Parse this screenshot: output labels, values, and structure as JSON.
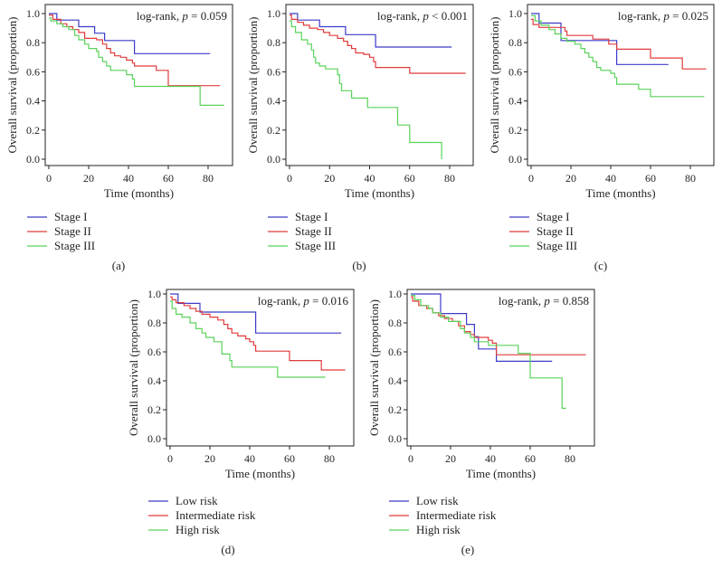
{
  "figure": {
    "colors": {
      "blue": "#3c3cc8",
      "red": "#e03c3c",
      "green": "#5ad25a",
      "axis": "#231f20"
    }
  },
  "chart_data": [
    {
      "type": "line",
      "panel_label": "(a)",
      "title": "",
      "xlabel": "Time (months)",
      "ylabel": "Overall survival (proportion)",
      "annotation_prefix": "log-rank, ",
      "annotation_p": "p",
      "annotation_value": " = 0.059",
      "xlim": [
        0,
        90
      ],
      "ylim": [
        0,
        1.0
      ],
      "xticks": [
        "0",
        "20",
        "40",
        "60",
        "80"
      ],
      "yticks": [
        "0.0",
        "0.2",
        "0.4",
        "0.6",
        "0.8",
        "1.0"
      ],
      "legend": "below",
      "series": [
        {
          "name": "Stage I",
          "color": "#3c3cc8",
          "steps": [
            [
              0,
              1.0
            ],
            [
              4,
              0.955
            ],
            [
              15,
              0.91
            ],
            [
              23,
              0.865
            ],
            [
              28,
              0.815
            ],
            [
              43,
              0.725
            ],
            [
              81,
              0.725
            ]
          ]
        },
        {
          "name": "Stage II",
          "color": "#e03c3c",
          "steps": [
            [
              0,
              0.99
            ],
            [
              2,
              0.96
            ],
            [
              6,
              0.93
            ],
            [
              9,
              0.91
            ],
            [
              12,
              0.89
            ],
            [
              15,
              0.87
            ],
            [
              18,
              0.83
            ],
            [
              24,
              0.82
            ],
            [
              27,
              0.79
            ],
            [
              29,
              0.76
            ],
            [
              31,
              0.73
            ],
            [
              33,
              0.71
            ],
            [
              36,
              0.7
            ],
            [
              39,
              0.68
            ],
            [
              42,
              0.66
            ],
            [
              43,
              0.64
            ],
            [
              54,
              0.61
            ],
            [
              60,
              0.505
            ],
            [
              86,
              0.505
            ]
          ]
        },
        {
          "name": "Stage III",
          "color": "#5ad25a",
          "steps": [
            [
              0,
              0.97
            ],
            [
              1,
              0.95
            ],
            [
              4,
              0.93
            ],
            [
              7,
              0.91
            ],
            [
              10,
              0.89
            ],
            [
              13,
              0.85
            ],
            [
              15,
              0.82
            ],
            [
              18,
              0.79
            ],
            [
              20,
              0.76
            ],
            [
              24,
              0.74
            ],
            [
              25,
              0.7
            ],
            [
              27,
              0.67
            ],
            [
              29,
              0.64
            ],
            [
              31,
              0.61
            ],
            [
              39,
              0.58
            ],
            [
              42,
              0.55
            ],
            [
              43,
              0.5
            ],
            [
              76,
              0.37
            ],
            [
              88,
              0.37
            ]
          ]
        }
      ]
    },
    {
      "type": "line",
      "panel_label": "(b)",
      "title": "",
      "xlabel": "Time (months)",
      "ylabel": "Overall survival (proportion)",
      "annotation_prefix": "log-rank, ",
      "annotation_p": "p",
      "annotation_value": " < 0.001",
      "xlim": [
        0,
        90
      ],
      "ylim": [
        0,
        1.0
      ],
      "xticks": [
        "0",
        "20",
        "40",
        "60",
        "80"
      ],
      "yticks": [
        "0.0",
        "0.2",
        "0.4",
        "0.6",
        "0.8",
        "1.0"
      ],
      "legend": "below",
      "series": [
        {
          "name": "Stage I",
          "color": "#3c3cc8",
          "steps": [
            [
              0,
              1.0
            ],
            [
              4,
              0.955
            ],
            [
              15,
              0.91
            ],
            [
              28,
              0.855
            ],
            [
              43,
              0.77
            ],
            [
              81,
              0.77
            ]
          ]
        },
        {
          "name": "Stage II",
          "color": "#e03c3c",
          "steps": [
            [
              0,
              0.99
            ],
            [
              1,
              0.96
            ],
            [
              4,
              0.94
            ],
            [
              7,
              0.92
            ],
            [
              10,
              0.9
            ],
            [
              14,
              0.89
            ],
            [
              17,
              0.87
            ],
            [
              20,
              0.85
            ],
            [
              24,
              0.83
            ],
            [
              27,
              0.81
            ],
            [
              29,
              0.78
            ],
            [
              31,
              0.76
            ],
            [
              33,
              0.73
            ],
            [
              37,
              0.72
            ],
            [
              40,
              0.7
            ],
            [
              42,
              0.67
            ],
            [
              43,
              0.63
            ],
            [
              60,
              0.59
            ],
            [
              88,
              0.59
            ]
          ]
        },
        {
          "name": "Stage III",
          "color": "#5ad25a",
          "steps": [
            [
              0,
              0.95
            ],
            [
              1,
              0.91
            ],
            [
              3,
              0.87
            ],
            [
              6,
              0.82
            ],
            [
              9,
              0.79
            ],
            [
              11,
              0.75
            ],
            [
              12,
              0.7
            ],
            [
              13,
              0.66
            ],
            [
              15,
              0.64
            ],
            [
              18,
              0.62
            ],
            [
              24,
              0.58
            ],
            [
              25,
              0.52
            ],
            [
              26,
              0.47
            ],
            [
              31,
              0.42
            ],
            [
              39,
              0.355
            ],
            [
              54,
              0.235
            ],
            [
              60,
              0.115
            ],
            [
              76,
              0.0
            ]
          ]
        }
      ]
    },
    {
      "type": "line",
      "panel_label": "(c)",
      "title": "",
      "xlabel": "Time (months)",
      "ylabel": "Overall survival (proportion)",
      "annotation_prefix": "log-rank, ",
      "annotation_p": "p",
      "annotation_value": " = 0.025",
      "xlim": [
        0,
        90
      ],
      "ylim": [
        0,
        1.0
      ],
      "xticks": [
        "0",
        "20",
        "40",
        "60",
        "80"
      ],
      "yticks": [
        "0.0",
        "0.2",
        "0.4",
        "0.6",
        "0.8",
        "1.0"
      ],
      "legend": "below",
      "series": [
        {
          "name": "Stage I",
          "color": "#3c3cc8",
          "steps": [
            [
              0,
              1.0
            ],
            [
              4,
              0.935
            ],
            [
              15,
              0.815
            ],
            [
              43,
              0.65
            ],
            [
              69,
              0.65
            ]
          ]
        },
        {
          "name": "Stage II",
          "color": "#e03c3c",
          "steps": [
            [
              0,
              0.96
            ],
            [
              1,
              0.925
            ],
            [
              4,
              0.905
            ],
            [
              17,
              0.88
            ],
            [
              18,
              0.85
            ],
            [
              31,
              0.825
            ],
            [
              39,
              0.79
            ],
            [
              43,
              0.755
            ],
            [
              60,
              0.695
            ],
            [
              76,
              0.62
            ],
            [
              88,
              0.62
            ]
          ]
        },
        {
          "name": "Stage III",
          "color": "#5ad25a",
          "steps": [
            [
              0,
              0.985
            ],
            [
              2,
              0.95
            ],
            [
              5,
              0.92
            ],
            [
              9,
              0.89
            ],
            [
              12,
              0.86
            ],
            [
              15,
              0.83
            ],
            [
              18,
              0.81
            ],
            [
              22,
              0.79
            ],
            [
              25,
              0.76
            ],
            [
              27,
              0.73
            ],
            [
              29,
              0.7
            ],
            [
              31,
              0.67
            ],
            [
              33,
              0.63
            ],
            [
              35,
              0.61
            ],
            [
              40,
              0.59
            ],
            [
              42,
              0.56
            ],
            [
              43,
              0.515
            ],
            [
              54,
              0.48
            ],
            [
              60,
              0.43
            ],
            [
              87,
              0.43
            ]
          ]
        }
      ]
    },
    {
      "type": "line",
      "panel_label": "(d)",
      "title": "",
      "xlabel": "Time (months)",
      "ylabel": "Overall survival (proportion)",
      "annotation_prefix": "log-rank, ",
      "annotation_p": "p",
      "annotation_value": " = 0.016",
      "xlim": [
        0,
        90
      ],
      "ylim": [
        0,
        1.0
      ],
      "xticks": [
        "0",
        "20",
        "40",
        "60",
        "80"
      ],
      "yticks": [
        "0.0",
        "0.2",
        "0.4",
        "0.6",
        "0.8",
        "1.0"
      ],
      "legend": "below",
      "series": [
        {
          "name": "Low risk",
          "color": "#3c3cc8",
          "steps": [
            [
              0,
              1.0
            ],
            [
              4,
              0.935
            ],
            [
              15,
              0.875
            ],
            [
              43,
              0.73
            ],
            [
              86,
              0.73
            ]
          ]
        },
        {
          "name": "Intermediate risk",
          "color": "#e03c3c",
          "steps": [
            [
              0,
              0.98
            ],
            [
              1,
              0.96
            ],
            [
              3,
              0.94
            ],
            [
              7,
              0.92
            ],
            [
              10,
              0.9
            ],
            [
              13,
              0.88
            ],
            [
              16,
              0.86
            ],
            [
              20,
              0.84
            ],
            [
              24,
              0.82
            ],
            [
              27,
              0.79
            ],
            [
              29,
              0.76
            ],
            [
              31,
              0.73
            ],
            [
              34,
              0.71
            ],
            [
              38,
              0.69
            ],
            [
              40,
              0.67
            ],
            [
              42,
              0.645
            ],
            [
              43,
              0.605
            ],
            [
              60,
              0.54
            ],
            [
              76,
              0.475
            ],
            [
              88,
              0.475
            ]
          ]
        },
        {
          "name": "High risk",
          "color": "#5ad25a",
          "steps": [
            [
              0,
              0.95
            ],
            [
              1,
              0.9
            ],
            [
              3,
              0.86
            ],
            [
              6,
              0.84
            ],
            [
              10,
              0.8
            ],
            [
              13,
              0.76
            ],
            [
              16,
              0.73
            ],
            [
              18,
              0.7
            ],
            [
              22,
              0.67
            ],
            [
              26,
              0.585
            ],
            [
              30,
              0.54
            ],
            [
              31,
              0.495
            ],
            [
              54,
              0.425
            ],
            [
              78,
              0.425
            ]
          ]
        }
      ]
    },
    {
      "type": "line",
      "panel_label": "(e)",
      "title": "",
      "xlabel": "Time (months)",
      "ylabel": "Overall survival (proportion)",
      "annotation_prefix": "log-rank, ",
      "annotation_p": "p",
      "annotation_value": " = 0.858",
      "xlim": [
        0,
        90
      ],
      "ylim": [
        0,
        1.0
      ],
      "xticks": [
        "0",
        "20",
        "40",
        "60",
        "80"
      ],
      "yticks": [
        "0.0",
        "0.2",
        "0.4",
        "0.6",
        "0.8",
        "1.0"
      ],
      "legend": "below",
      "series": [
        {
          "name": "Low risk",
          "color": "#3c3cc8",
          "steps": [
            [
              0,
              1.0
            ],
            [
              15,
              0.865
            ],
            [
              28,
              0.79
            ],
            [
              32,
              0.705
            ],
            [
              34,
              0.62
            ],
            [
              43,
              0.535
            ],
            [
              71,
              0.535
            ]
          ]
        },
        {
          "name": "Intermediate risk",
          "color": "#e03c3c",
          "steps": [
            [
              0,
              0.98
            ],
            [
              1,
              0.95
            ],
            [
              4,
              0.92
            ],
            [
              8,
              0.9
            ],
            [
              11,
              0.87
            ],
            [
              14,
              0.85
            ],
            [
              17,
              0.83
            ],
            [
              21,
              0.81
            ],
            [
              24,
              0.78
            ],
            [
              27,
              0.74
            ],
            [
              30,
              0.72
            ],
            [
              32,
              0.7
            ],
            [
              39,
              0.68
            ],
            [
              41,
              0.66
            ],
            [
              43,
              0.58
            ],
            [
              88,
              0.58
            ]
          ]
        },
        {
          "name": "High risk",
          "color": "#5ad25a",
          "steps": [
            [
              0,
              0.99
            ],
            [
              2,
              0.96
            ],
            [
              5,
              0.92
            ],
            [
              9,
              0.9
            ],
            [
              11,
              0.87
            ],
            [
              15,
              0.84
            ],
            [
              19,
              0.81
            ],
            [
              25,
              0.76
            ],
            [
              27,
              0.73
            ],
            [
              30,
              0.7
            ],
            [
              32,
              0.67
            ],
            [
              39,
              0.645
            ],
            [
              54,
              0.59
            ],
            [
              60,
              0.42
            ],
            [
              76,
              0.21
            ],
            [
              78,
              0.21
            ]
          ]
        }
      ]
    }
  ]
}
